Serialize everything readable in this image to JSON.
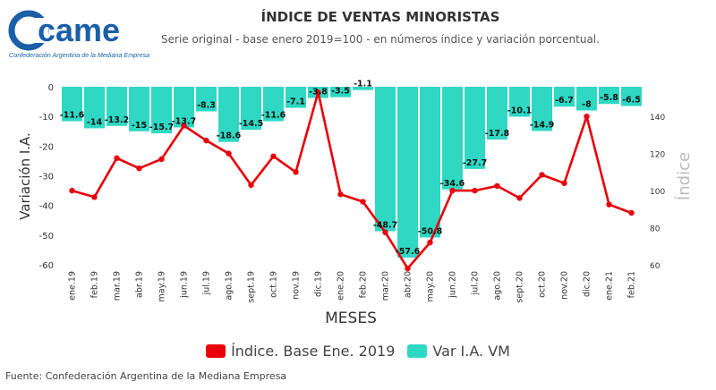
{
  "header": {
    "logo_text": "came",
    "logo_caption": "Confederación Argentina de la Mediana Empresa",
    "title": "ÍNDICE DE VENTAS MINORISTAS",
    "subtitle": "Serie original - base enero 2019=100 - en números índice y variación porcentual."
  },
  "footer": {
    "source": "Fuente: Confederación Argentina de la Mediana Empresa"
  },
  "colors": {
    "bars": "#2ed8c3",
    "line": "#e8000b",
    "axis_text": "#333333",
    "secondary_axis_title": "#bbbbbb",
    "logo": "#1a5fa8"
  },
  "chart_data": {
    "type": "bar+line",
    "categories": [
      "ene.19",
      "feb.19",
      "mar.19",
      "abr.19",
      "may.19",
      "jun.19",
      "jul.19",
      "ago.19",
      "sept.19",
      "oct.19",
      "nov.19",
      "dic.19",
      "ene.20",
      "feb.20",
      "mar.20",
      "abr.20",
      "may.20",
      "jun.20",
      "jul.20",
      "ago.20",
      "sept.20",
      "oct.20",
      "nov.20",
      "dic.20",
      "ene.21",
      "feb.21"
    ],
    "series": [
      {
        "name": "Var I.A. VM",
        "type": "bar",
        "axis": "left",
        "values": [
          -11.6,
          -14,
          -13.2,
          -15,
          -15.7,
          -13.7,
          -8.3,
          -18.6,
          -14.5,
          -11.6,
          -7.1,
          -3.8,
          -3.5,
          -1.1,
          -48.7,
          -57.6,
          -50.8,
          -34.6,
          -27.7,
          -17.8,
          -10.1,
          -14.9,
          -6.7,
          -8,
          -5.8,
          -6.5
        ],
        "labels": [
          "-11.6",
          "-14",
          "-13.2",
          "-15",
          "-15.7",
          "-13.7",
          "-8.3",
          "-18.6",
          "-14.5",
          "-11.6",
          "-7.1",
          "-3.8",
          "-3.5",
          "-1.1",
          "-48.7",
          "-57.6",
          "-50.8",
          "-34.6",
          "-27.7",
          "-17.8",
          "-10.1",
          "-14.9",
          "-6.7",
          "-8",
          "-5.8",
          "-6.5"
        ]
      },
      {
        "name": "Índice. Base Ene. 2019",
        "type": "line",
        "axis": "right",
        "values": [
          100,
          96.5,
          117.5,
          112,
          117,
          135,
          127,
          120,
          103,
          118.5,
          110,
          153,
          98,
          94,
          77.5,
          58,
          72,
          100,
          100,
          102.5,
          96,
          108.5,
          104,
          140,
          92.5,
          88
        ]
      }
    ],
    "xlabel": "MESES",
    "ylabel": "Variación I.A.",
    "ylabel_right": "Índice",
    "ylim": [
      -60,
      0
    ],
    "yticks": [
      0,
      -10,
      -20,
      -30,
      -40,
      -50,
      -60
    ],
    "ylim_right": [
      60,
      156
    ],
    "yticks_right": [
      60,
      80,
      100,
      120,
      140
    ],
    "grid": false,
    "legend_position": "bottom"
  }
}
